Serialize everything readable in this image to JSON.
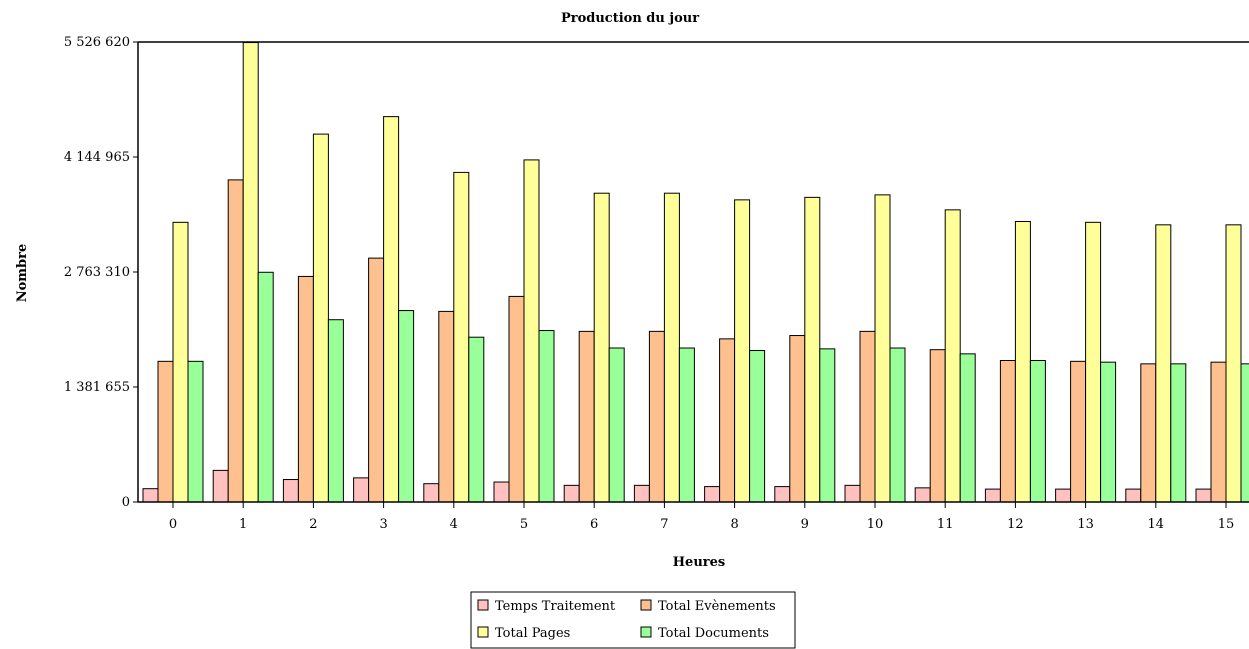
{
  "chart_data": {
    "type": "bar",
    "title": "Production du jour",
    "xlabel": "Heures",
    "ylabel": "Nombre",
    "categories": [
      "0",
      "1",
      "2",
      "3",
      "4",
      "5",
      "6",
      "7",
      "8",
      "9",
      "10",
      "11",
      "12",
      "13",
      "14",
      "15"
    ],
    "ylim": [
      0,
      5526620
    ],
    "yticks": [
      0,
      1381655,
      2763310,
      4144965,
      5526620
    ],
    "ytick_labels": [
      "0",
      "1 381 655",
      "2 763 310",
      "4 144 965",
      "5 526 620"
    ],
    "grid": false,
    "legend_position": "bottom-center",
    "series": [
      {
        "name": "Temps Traitement",
        "color": "#ffc0c0",
        "values": [
          160000,
          380000,
          270000,
          290000,
          220000,
          240000,
          200000,
          200000,
          185000,
          185000,
          200000,
          170000,
          155000,
          155000,
          155000,
          155000
        ]
      },
      {
        "name": "Total Evènements",
        "color": "#ffc090",
        "values": [
          1690000,
          3870000,
          2710000,
          2930000,
          2290000,
          2470000,
          2050000,
          2050000,
          1960000,
          2000000,
          2050000,
          1830000,
          1700000,
          1690000,
          1660000,
          1680000
        ]
      },
      {
        "name": "Total Pages",
        "color": "#ffff99",
        "values": [
          3360000,
          5520000,
          4420000,
          4630000,
          3960000,
          4110000,
          3710000,
          3710000,
          3630000,
          3660000,
          3690000,
          3510000,
          3370000,
          3360000,
          3330000,
          3330000
        ]
      },
      {
        "name": "Total Documents",
        "color": "#99ff99",
        "values": [
          1690000,
          2760000,
          2190000,
          2300000,
          1980000,
          2060000,
          1850000,
          1850000,
          1820000,
          1840000,
          1850000,
          1780000,
          1700000,
          1680000,
          1660000,
          1660000
        ]
      }
    ]
  }
}
